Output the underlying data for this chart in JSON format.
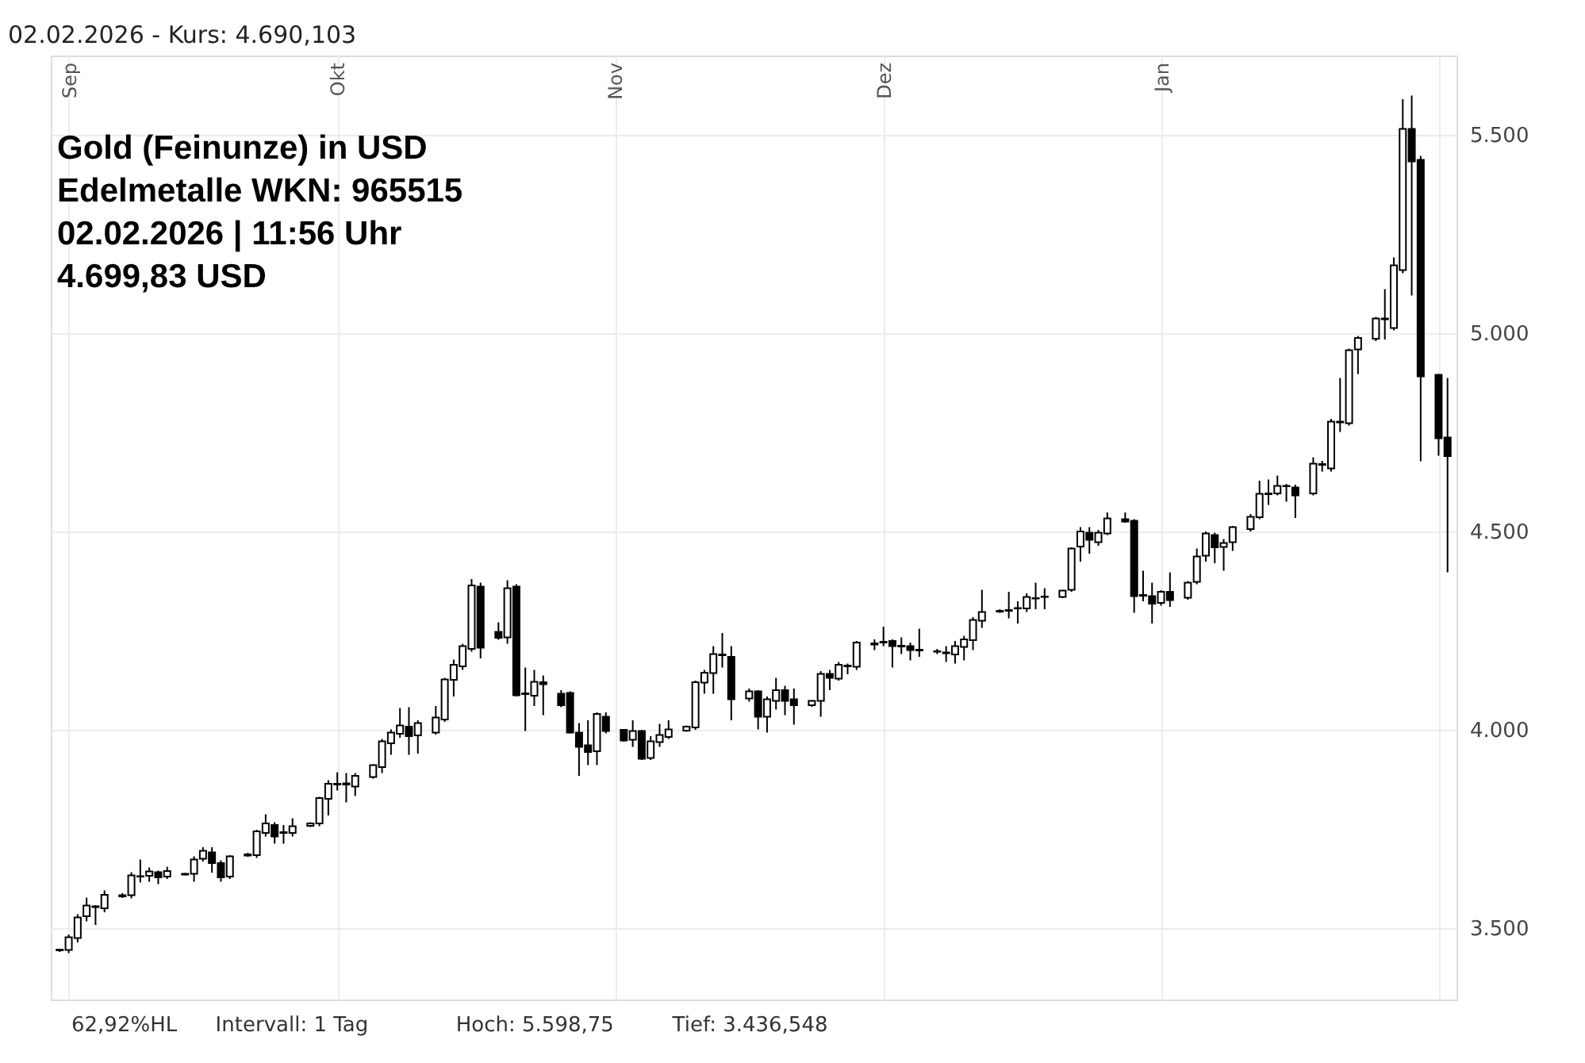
{
  "chart_data": {
    "type": "candlestick",
    "title": "02.02.2026  -  Kurs: 4.690,103",
    "subtitle": "Gold (Feinunze) in USD\nEdelmetalle WKN: 965515\n02.02.2026 | 11:56 Uhr\n4.699,83 USD",
    "annotations": [
      "62,92%HL",
      "Intervall: 1 Tag",
      "Hoch: 5.598,75",
      "Tief: 3.436,548"
    ],
    "color": "#000000",
    "grid": true,
    "xlim": [
      "2025-08-30",
      "2026-02-03"
    ],
    "xticks": [
      {
        "value": "2025-09-01",
        "label": "Sep"
      },
      {
        "value": "2025-10-01",
        "label": "Okt"
      },
      {
        "value": "2025-11-01",
        "label": "Nov"
      },
      {
        "value": "2025-12-01",
        "label": "Dez"
      },
      {
        "value": "2026-01-01",
        "label": "Jan"
      },
      {
        "value": "2026-02-01",
        "label": null
      }
    ],
    "ylim": [
      3320,
      5700
    ],
    "yticks": [
      {
        "value": 3500,
        "label": "3.500"
      },
      {
        "value": 4000,
        "label": "4.000"
      },
      {
        "value": 4500,
        "label": "4.500"
      },
      {
        "value": 5000,
        "label": "5.000"
      },
      {
        "value": 5500,
        "label": "5.500"
      }
    ],
    "x": [
      "2025-08-31",
      "2025-09-01",
      "2025-09-02",
      "2025-09-03",
      "2025-09-04",
      "2025-09-05",
      "2025-09-07",
      "2025-09-08",
      "2025-09-09",
      "2025-09-10",
      "2025-09-11",
      "2025-09-12",
      "2025-09-14",
      "2025-09-15",
      "2025-09-16",
      "2025-09-17",
      "2025-09-18",
      "2025-09-19",
      "2025-09-21",
      "2025-09-22",
      "2025-09-23",
      "2025-09-24",
      "2025-09-25",
      "2025-09-26",
      "2025-09-28",
      "2025-09-29",
      "2025-09-30",
      "2025-10-01",
      "2025-10-02",
      "2025-10-03",
      "2025-10-05",
      "2025-10-06",
      "2025-10-07",
      "2025-10-08",
      "2025-10-09",
      "2025-10-10",
      "2025-10-12",
      "2025-10-13",
      "2025-10-14",
      "2025-10-15",
      "2025-10-16",
      "2025-10-17",
      "2025-10-19",
      "2025-10-20",
      "2025-10-21",
      "2025-10-22",
      "2025-10-23",
      "2025-10-24",
      "2025-10-26",
      "2025-10-27",
      "2025-10-28",
      "2025-10-29",
      "2025-10-30",
      "2025-10-31",
      "2025-11-02",
      "2025-11-03",
      "2025-11-04",
      "2025-11-05",
      "2025-11-06",
      "2025-11-07",
      "2025-11-09",
      "2025-11-10",
      "2025-11-11",
      "2025-11-12",
      "2025-11-13",
      "2025-11-14",
      "2025-11-16",
      "2025-11-17",
      "2025-11-18",
      "2025-11-19",
      "2025-11-20",
      "2025-11-21",
      "2025-11-23",
      "2025-11-24",
      "2025-11-25",
      "2025-11-26",
      "2025-11-27",
      "2025-11-28",
      "2025-11-30",
      "2025-12-01",
      "2025-12-02",
      "2025-12-03",
      "2025-12-04",
      "2025-12-05",
      "2025-12-07",
      "2025-12-08",
      "2025-12-09",
      "2025-12-10",
      "2025-12-11",
      "2025-12-12",
      "2025-12-14",
      "2025-12-15",
      "2025-12-16",
      "2025-12-17",
      "2025-12-18",
      "2025-12-19",
      "2025-12-21",
      "2025-12-22",
      "2025-12-23",
      "2025-12-24",
      "2025-12-25",
      "2025-12-26",
      "2025-12-28",
      "2025-12-29",
      "2025-12-30",
      "2025-12-31",
      "2026-01-01",
      "2026-01-02",
      "2026-01-04",
      "2026-01-05",
      "2026-01-06",
      "2026-01-07",
      "2026-01-08",
      "2026-01-09",
      "2026-01-11",
      "2026-01-12",
      "2026-01-13",
      "2026-01-14",
      "2026-01-15",
      "2026-01-16",
      "2026-01-18",
      "2026-01-19",
      "2026-01-20",
      "2026-01-21",
      "2026-01-22",
      "2026-01-23",
      "2026-01-25",
      "2026-01-26",
      "2026-01-27",
      "2026-01-28",
      "2026-01-29",
      "2026-01-30",
      "2026-02-01",
      "2026-02-02"
    ],
    "ohlc": [
      [
        3444,
        3448,
        3440,
        3446
      ],
      [
        3445,
        3484,
        3437,
        3477
      ],
      [
        3475,
        3535,
        3464,
        3527
      ],
      [
        3530,
        3577,
        3517,
        3557
      ],
      [
        3555,
        3558,
        3508,
        3553
      ],
      [
        3550,
        3595,
        3540,
        3584
      ],
      [
        3580,
        3588,
        3576,
        3583
      ],
      [
        3583,
        3641,
        3575,
        3633
      ],
      [
        3630,
        3673,
        3615,
        3631
      ],
      [
        3632,
        3653,
        3617,
        3643
      ],
      [
        3641,
        3645,
        3611,
        3628
      ],
      [
        3630,
        3655,
        3624,
        3644
      ],
      [
        3635,
        3639,
        3633,
        3637
      ],
      [
        3637,
        3681,
        3617,
        3673
      ],
      [
        3675,
        3704,
        3668,
        3695
      ],
      [
        3691,
        3704,
        3640,
        3664
      ],
      [
        3664,
        3671,
        3617,
        3628
      ],
      [
        3630,
        3684,
        3624,
        3681
      ],
      [
        3683,
        3690,
        3680,
        3686
      ],
      [
        3684,
        3748,
        3677,
        3744
      ],
      [
        3740,
        3787,
        3731,
        3764
      ],
      [
        3760,
        3767,
        3713,
        3731
      ],
      [
        3740,
        3760,
        3713,
        3742
      ],
      [
        3740,
        3777,
        3731,
        3757
      ],
      [
        3758,
        3767,
        3755,
        3764
      ],
      [
        3764,
        3831,
        3757,
        3828
      ],
      [
        3826,
        3873,
        3784,
        3864
      ],
      [
        3862,
        3893,
        3847,
        3864
      ],
      [
        3865,
        3891,
        3817,
        3862
      ],
      [
        3857,
        3891,
        3833,
        3884
      ],
      [
        3881,
        3913,
        3877,
        3911
      ],
      [
        3906,
        3977,
        3891,
        3971
      ],
      [
        3966,
        4001,
        3937,
        3993
      ],
      [
        3990,
        4055,
        3980,
        4011
      ],
      [
        4008,
        4057,
        3937,
        3984
      ],
      [
        3986,
        4024,
        3940,
        4017
      ],
      [
        3993,
        4060,
        3988,
        4031
      ],
      [
        4026,
        4131,
        4020,
        4127
      ],
      [
        4126,
        4177,
        4084,
        4164
      ],
      [
        4160,
        4217,
        4151,
        4211
      ],
      [
        4204,
        4380,
        4197,
        4364
      ],
      [
        4361,
        4371,
        4180,
        4207
      ],
      [
        4247,
        4271,
        4227,
        4232
      ],
      [
        4233,
        4377,
        4217,
        4357
      ],
      [
        4361,
        4367,
        4084,
        4087
      ],
      [
        4090,
        4157,
        3997,
        4092
      ],
      [
        4086,
        4151,
        4060,
        4121
      ],
      [
        4120,
        4137,
        4037,
        4115
      ],
      [
        4091,
        4100,
        4057,
        4062
      ],
      [
        4093,
        4097,
        3991,
        3993
      ],
      [
        3993,
        4017,
        3884,
        3957
      ],
      [
        3961,
        4024,
        3911,
        3944
      ],
      [
        3946,
        4044,
        3911,
        4040
      ],
      [
        4033,
        4044,
        3991,
        3997
      ],
      [
        4000,
        4002,
        3970,
        3973
      ],
      [
        3975,
        4024,
        3957,
        3997
      ],
      [
        3997,
        4000,
        3924,
        3927
      ],
      [
        3929,
        3984,
        3924,
        3971
      ],
      [
        3969,
        4015,
        3957,
        3987
      ],
      [
        3982,
        4024,
        3977,
        4001
      ],
      [
        3998,
        4011,
        3995,
        4008
      ],
      [
        4006,
        4124,
        4000,
        4120
      ],
      [
        4119,
        4151,
        4091,
        4144
      ],
      [
        4143,
        4211,
        4091,
        4191
      ],
      [
        4190,
        4244,
        4157,
        4188
      ],
      [
        4184,
        4211,
        4024,
        4077
      ],
      [
        4079,
        4104,
        4071,
        4097
      ],
      [
        4097,
        4100,
        4001,
        4033
      ],
      [
        4033,
        4084,
        3993,
        4077
      ],
      [
        4073,
        4131,
        4051,
        4100
      ],
      [
        4100,
        4111,
        4037,
        4073
      ],
      [
        4077,
        4104,
        4013,
        4062
      ],
      [
        4062,
        4075,
        4058,
        4073
      ],
      [
        4073,
        4148,
        4033,
        4141
      ],
      [
        4141,
        4151,
        4100,
        4131
      ],
      [
        4129,
        4171,
        4124,
        4164
      ],
      [
        4160,
        4167,
        4140,
        4162
      ],
      [
        4159,
        4224,
        4151,
        4220
      ],
      [
        4215,
        4228,
        4201,
        4218
      ],
      [
        4220,
        4260,
        4211,
        4222
      ],
      [
        4224,
        4228,
        4157,
        4211
      ],
      [
        4212,
        4233,
        4191,
        4210
      ],
      [
        4211,
        4220,
        4175,
        4201
      ],
      [
        4202,
        4255,
        4184,
        4200
      ],
      [
        4197,
        4204,
        4191,
        4198
      ],
      [
        4195,
        4211,
        4171,
        4193
      ],
      [
        4190,
        4224,
        4167,
        4211
      ],
      [
        4209,
        4237,
        4175,
        4228
      ],
      [
        4226,
        4284,
        4201,
        4277
      ],
      [
        4275,
        4353,
        4257,
        4297
      ],
      [
        4298,
        4304,
        4295,
        4300
      ],
      [
        4300,
        4348,
        4281,
        4302
      ],
      [
        4307,
        4324,
        4268,
        4306
      ],
      [
        4306,
        4344,
        4297,
        4335
      ],
      [
        4331,
        4371,
        4304,
        4332
      ],
      [
        4335,
        4357,
        4304,
        4336
      ],
      [
        4335,
        4353,
        4332,
        4351
      ],
      [
        4353,
        4460,
        4348,
        4457
      ],
      [
        4462,
        4511,
        4424,
        4500
      ],
      [
        4497,
        4511,
        4444,
        4479
      ],
      [
        4473,
        4504,
        4464,
        4497
      ],
      [
        4495,
        4548,
        4491,
        4533
      ],
      [
        4531,
        4548,
        4522,
        4525
      ],
      [
        4527,
        4531,
        4295,
        4337
      ],
      [
        4338,
        4401,
        4324,
        4340
      ],
      [
        4337,
        4371,
        4268,
        4318
      ],
      [
        4320,
        4352,
        4313,
        4348
      ],
      [
        4348,
        4397,
        4310,
        4327
      ],
      [
        4333,
        4375,
        4328,
        4371
      ],
      [
        4373,
        4457,
        4367,
        4437
      ],
      [
        4439,
        4500,
        4424,
        4495
      ],
      [
        4491,
        4497,
        4420,
        4460
      ],
      [
        4461,
        4481,
        4401,
        4471
      ],
      [
        4473,
        4514,
        4451,
        4511
      ],
      [
        4506,
        4544,
        4500,
        4537
      ],
      [
        4536,
        4628,
        4531,
        4595
      ],
      [
        4594,
        4631,
        4567,
        4596
      ],
      [
        4596,
        4641,
        4591,
        4615
      ],
      [
        4615,
        4620,
        4575,
        4614
      ],
      [
        4611,
        4618,
        4534,
        4591
      ],
      [
        4596,
        4687,
        4591,
        4671
      ],
      [
        4668,
        4678,
        4651,
        4670
      ],
      [
        4659,
        4784,
        4651,
        4777
      ],
      [
        4775,
        4887,
        4751,
        4777
      ],
      [
        4773,
        4961,
        4767,
        4957
      ],
      [
        4959,
        4993,
        4897,
        4988
      ],
      [
        4986,
        5041,
        4980,
        5037
      ],
      [
        5035,
        5111,
        4984,
        5037
      ],
      [
        5013,
        5191,
        5007,
        5171
      ],
      [
        5159,
        5590,
        5151,
        5515
      ],
      [
        5515,
        5599,
        5095,
        5433
      ],
      [
        5437,
        5447,
        4677,
        4891
      ],
      [
        4895,
        4897,
        4691,
        4735
      ],
      [
        4737,
        4887,
        4397,
        4690
      ]
    ]
  }
}
